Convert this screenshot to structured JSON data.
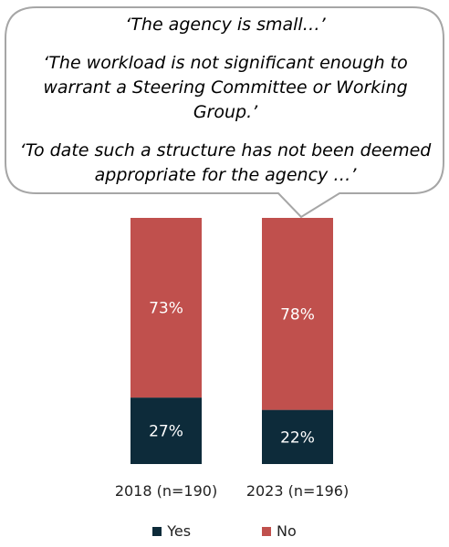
{
  "quotes": [
    {
      "lines": [
        "‘The agency is small…’"
      ]
    },
    {
      "lines": [
        "‘The workload is not significant enough to",
        "warrant a Steering Committee or Working Group.’"
      ]
    },
    {
      "lines": [
        "‘To date such a structure has not been deemed",
        "appropriate for the agency …’"
      ]
    }
  ],
  "colors": {
    "yes": "#0d2b3a",
    "no": "#c0504d"
  },
  "chart_data": {
    "type": "bar",
    "stacked": true,
    "normalized": true,
    "categories": [
      "2018 (n=190)",
      "2023 (n=196)"
    ],
    "series": [
      {
        "name": "Yes",
        "values": [
          27,
          22
        ],
        "labels": [
          "27%",
          "22%"
        ]
      },
      {
        "name": "No",
        "values": [
          73,
          78
        ],
        "labels": [
          "73%",
          "78%"
        ]
      }
    ],
    "ylim": [
      0,
      100
    ],
    "legend": "bottom"
  }
}
